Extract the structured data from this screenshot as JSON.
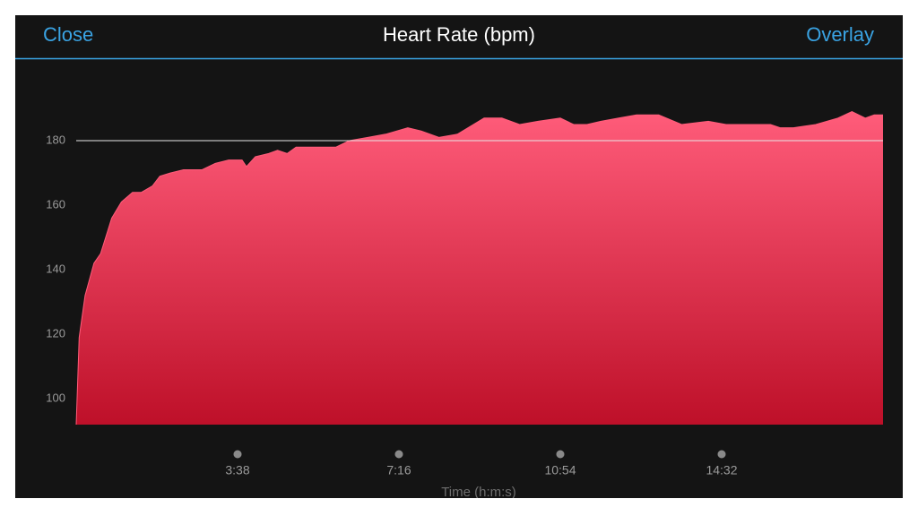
{
  "header": {
    "left": "Close",
    "title": "Heart Rate (bpm)",
    "right": "Overlay"
  },
  "chart_data": {
    "type": "area",
    "x_label": "Time (h:m:s)",
    "x": [
      0,
      4,
      12,
      24,
      33,
      48,
      61,
      76,
      88,
      103,
      113,
      127,
      145,
      170,
      188,
      206,
      224,
      230,
      242,
      260,
      272,
      285,
      297,
      315,
      351,
      369,
      394,
      418,
      448,
      466,
      490,
      515,
      551,
      575,
      599,
      624,
      654,
      672,
      690,
      709,
      733,
      757,
      787,
      818,
      854,
      878,
      938,
      951,
      969,
      999,
      1029,
      1048,
      1066,
      1078,
      1090
    ],
    "values": [
      92,
      119,
      132,
      142,
      145,
      156,
      161,
      164,
      164,
      166,
      169,
      170,
      171,
      171,
      173,
      174,
      174,
      172,
      175,
      176,
      177,
      176,
      178,
      178,
      178,
      180,
      181,
      182,
      184,
      183,
      181,
      182,
      187,
      187,
      185,
      186,
      187,
      185,
      185,
      186,
      187,
      188,
      188,
      185,
      186,
      185,
      185,
      184,
      184,
      185,
      187,
      189,
      187,
      188,
      188
    ],
    "color_top": "#ff5c7a",
    "color_bottom": "#be1029",
    "xlim": [
      0,
      1090
    ],
    "ylim": [
      92,
      200
    ],
    "xticks": [
      {
        "value": 218,
        "label": "3:38"
      },
      {
        "value": 436,
        "label": "7:16"
      },
      {
        "value": 654,
        "label": "10:54"
      },
      {
        "value": 872,
        "label": "14:32"
      }
    ],
    "yticks": [
      100,
      120,
      140,
      160,
      180
    ],
    "reference_line": 180
  }
}
